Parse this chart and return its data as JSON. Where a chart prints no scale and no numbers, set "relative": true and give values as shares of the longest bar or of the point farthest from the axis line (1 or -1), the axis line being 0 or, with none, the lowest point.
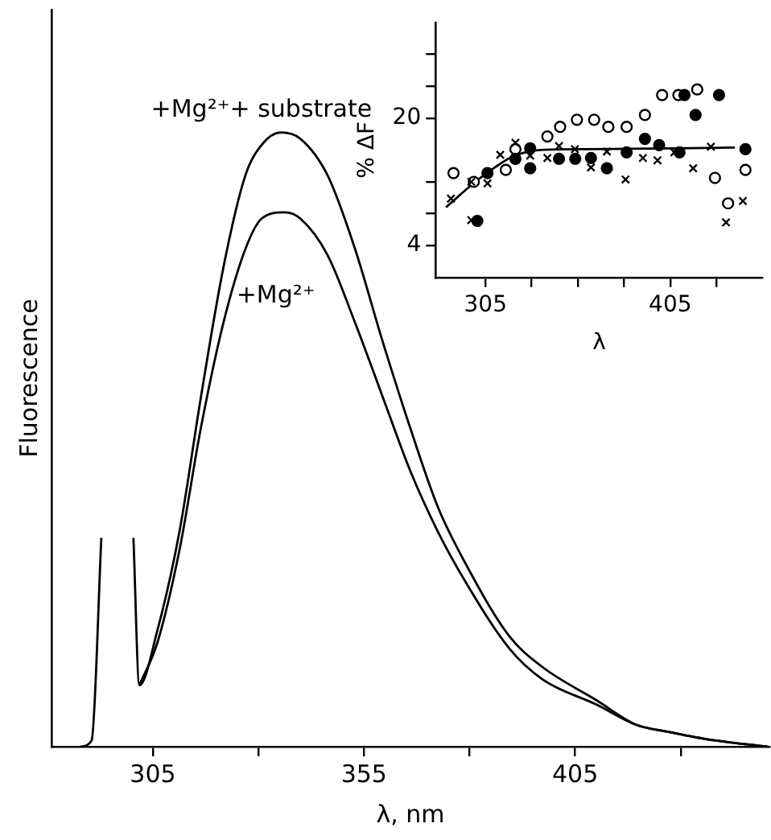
{
  "chart_data": [
    {
      "type": "line",
      "xlabel": "λ, nm",
      "ylabel": "Fluorescence",
      "relative": true,
      "xlim": [
        281,
        451
      ],
      "xticks": [
        305,
        {
          "value": 330,
          "label": null
        },
        355,
        {
          "value": 380,
          "label": null
        },
        405,
        {
          "value": 430,
          "label": null
        }
      ],
      "marker": "none",
      "line_style": "solid",
      "series": [
        {
          "name": "+Mg²⁺+ substrate",
          "color": "#000000",
          "x": [
            287.8,
            290.5,
            292.8,
            296,
            300.4,
            301.8,
            306.1,
            311.3,
            316.4,
            321.7,
            326.9,
            330.8,
            335.3,
            339.9,
            346.4,
            352.9,
            359.4,
            365.9,
            372.5,
            378.9,
            389.4,
            397.2,
            410.2,
            419.3,
            427.1,
            436.3,
            450.5
          ],
          "values": [
            0,
            0.01,
            0.34,
            null,
            0.34,
            0.1,
            0.19,
            0.35,
            0.57,
            0.78,
            0.93,
            0.98,
            1,
            0.99,
            0.93,
            0.81,
            0.66,
            0.52,
            0.39,
            0.3,
            0.18,
            0.13,
            0.075,
            0.036,
            0.024,
            0.012,
            0
          ]
        },
        {
          "name": "+Mg²⁺",
          "color": "#000000",
          "x": [
            301.8,
            306.1,
            311.3,
            316.4,
            321.7,
            326.9,
            330.8,
            336.2,
            339.9,
            346.4,
            352.9,
            359.4,
            365.9,
            372.5,
            378.9,
            389.4,
            397.2,
            410.2,
            419.3,
            427.1,
            436.3,
            450.5
          ],
          "values": [
            0.1,
            0.17,
            0.32,
            0.52,
            0.69,
            0.81,
            0.86,
            0.87,
            0.86,
            0.8,
            0.69,
            0.57,
            0.45,
            0.35,
            0.27,
            0.16,
            0.11,
            0.068,
            0.036,
            0.024,
            0.012,
            0
          ]
        }
      ]
    },
    {
      "type": "scatter",
      "xlabel": "λ",
      "ylabel": "% ΔF",
      "xlim": [
        278,
        455
      ],
      "ylim": [
        0,
        32
      ],
      "xticks": [
        305,
        {
          "value": 330,
          "label": null
        },
        {
          "value": 355,
          "label": null
        },
        {
          "value": 380,
          "label": null
        },
        405,
        {
          "value": 430,
          "label": null
        }
      ],
      "yticks": [
        4,
        {
          "value": 8,
          "label": null
        },
        {
          "value": 12,
          "label": null
        },
        20,
        {
          "value": 24,
          "label": null
        },
        {
          "value": 28,
          "label": null
        }
      ],
      "line_style": "solid",
      "series": [
        {
          "color": "#ffffff",
          "marker": "circle",
          "x": [
            287.7,
            298.7,
            316,
            321.2,
            338.5,
            345.4,
            354.5,
            363.8,
            371.5,
            381.4,
            391.3,
            400.6,
            409.4,
            419.6,
            429.2,
            436.3,
            445.7
          ],
          "values": [
            13.1,
            12,
            13.5,
            16.1,
            17.7,
            18.9,
            19.8,
            19.8,
            18.9,
            18.9,
            20.4,
            22.9,
            22.9,
            23.6,
            12.5,
            9.3,
            13.5
          ]
        },
        {
          "color": "#000000",
          "marker": "circle",
          "x": [
            300.6,
            306.1,
            321.2,
            329.2,
            329.2,
            344.8,
            353.6,
            362.1,
            370.7,
            381.4,
            391.3,
            399,
            410,
            412.7,
            418.7,
            431.4,
            445.7
          ],
          "values": [
            7.1,
            13.1,
            14.9,
            13.7,
            16.2,
            14.9,
            14.9,
            15,
            13.7,
            15.7,
            17.4,
            16.6,
            15.7,
            22.9,
            20.4,
            22.9,
            16.1
          ]
        },
        {
          "color": "#000000",
          "marker": "cross",
          "x": [
            286.3,
            297.3,
            306.1,
            297.3,
            313,
            321.2,
            329.2,
            338.5,
            344.8,
            353.4,
            362.1,
            370.7,
            380.8,
            390.2,
            398.1,
            407.2,
            417.4,
            427,
            435.2,
            444.3
          ],
          "values": [
            9.9,
            12,
            11.8,
            7.2,
            15.4,
            16.9,
            15.3,
            15,
            16.5,
            16.1,
            13.8,
            15.8,
            12.3,
            15,
            14.7,
            15.7,
            13.7,
            16.4,
            6.9,
            9.6
          ]
        },
        {
          "type": "line",
          "color": "#000000",
          "marker": "none",
          "x": [
            283.6,
            300,
            310,
            320,
            335,
            360,
            440
          ],
          "values": [
            8.8,
            12.1,
            13.8,
            15.2,
            16,
            16.1,
            16.3
          ]
        }
      ]
    }
  ]
}
